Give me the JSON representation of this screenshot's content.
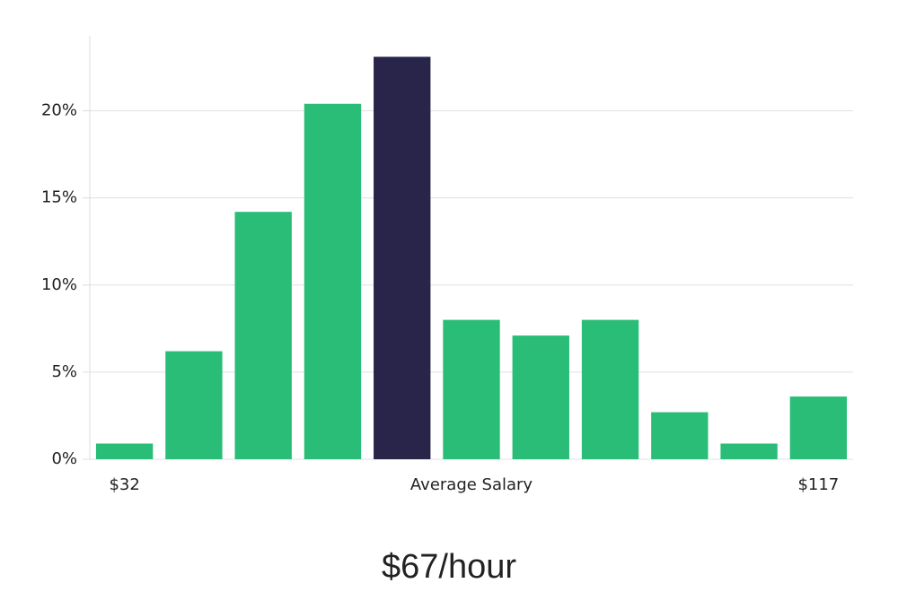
{
  "chart_data": {
    "type": "bar",
    "categories": [
      "$32",
      null,
      null,
      null,
      null,
      "Average Salary",
      null,
      null,
      null,
      null,
      "$117"
    ],
    "values": [
      0.9,
      6.2,
      14.2,
      20.4,
      23.1,
      8.0,
      7.1,
      8.0,
      2.7,
      0.9,
      3.6
    ],
    "colors": [
      "#2abd78",
      "#2abd78",
      "#2abd78",
      "#2abd78",
      "#28244a",
      "#2abd78",
      "#2abd78",
      "#2abd78",
      "#2abd78",
      "#2abd78",
      "#2abd78"
    ],
    "ylim": [
      0,
      24.3
    ],
    "yticks": [
      {
        "value": 0,
        "label": "0%"
      },
      {
        "value": 5,
        "label": "5%"
      },
      {
        "value": 10,
        "label": "10%"
      },
      {
        "value": 15,
        "label": "15%"
      },
      {
        "value": 20,
        "label": "20%"
      }
    ],
    "grid": true,
    "annotation": "$67/hour"
  }
}
